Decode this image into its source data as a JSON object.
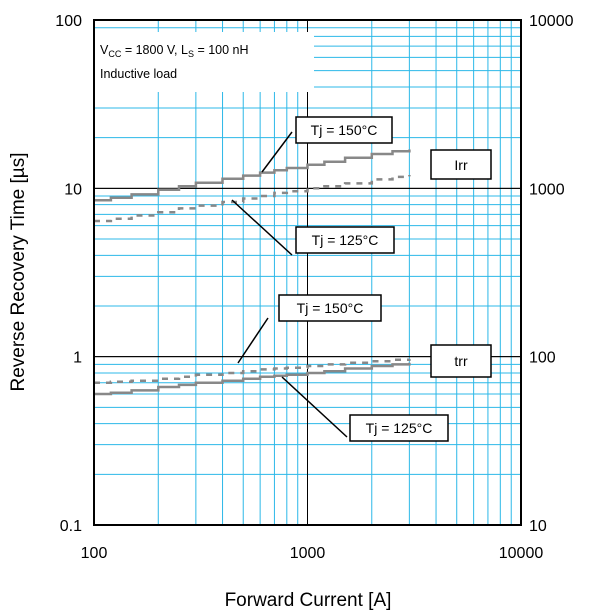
{
  "chart_data": {
    "type": "line",
    "title": "",
    "xlabel": "Forward Current [A]",
    "ylabel": "Reverse Recovery Time [µs]",
    "y2label": "",
    "xscale": "log",
    "yscale": "log",
    "xlim": [
      100,
      10000
    ],
    "ylim": [
      0.1,
      100
    ],
    "y2lim": [
      10,
      10000
    ],
    "xticks": [
      "100",
      "1000",
      "10000"
    ],
    "yticks": [
      "0.1",
      "1",
      "10",
      "100"
    ],
    "y2ticks": [
      "10",
      "100",
      "1000",
      "10000"
    ],
    "grid": true,
    "conditions": {
      "line1": {
        "vcc": "V",
        "vcc_sub": "CC",
        "vcc_val": " = 1800 V, L",
        "ls_sub": "S",
        "ls_val": " = 100 nH"
      },
      "line2": "Inductive load"
    },
    "series": [
      {
        "group": "Irr",
        "label": "Tj = 150°C",
        "style": "solid",
        "axis": "right",
        "x": [
          100,
          120,
          150,
          200,
          250,
          300,
          400,
          500,
          600,
          700,
          800,
          1000,
          1200,
          1500,
          2000,
          2500,
          3000
        ],
        "y": [
          850,
          880,
          920,
          980,
          1030,
          1080,
          1140,
          1190,
          1240,
          1280,
          1320,
          1380,
          1440,
          1520,
          1600,
          1660,
          1700
        ]
      },
      {
        "group": "Irr",
        "label": "Tj = 125°C",
        "style": "dashed",
        "axis": "right",
        "x": [
          100,
          120,
          150,
          200,
          250,
          300,
          400,
          500,
          600,
          700,
          800,
          1000,
          1200,
          1500,
          2000,
          2500,
          3000
        ],
        "y": [
          640,
          660,
          690,
          720,
          760,
          790,
          830,
          870,
          900,
          940,
          960,
          1000,
          1030,
          1070,
          1130,
          1170,
          1200
        ]
      },
      {
        "group": "trr",
        "label": "Tj = 150°C",
        "style": "dashed",
        "axis": "left",
        "x": [
          100,
          120,
          150,
          200,
          250,
          300,
          400,
          500,
          600,
          700,
          800,
          1000,
          1200,
          1500,
          2000,
          2500,
          3000
        ],
        "y": [
          0.7,
          0.71,
          0.72,
          0.74,
          0.76,
          0.78,
          0.8,
          0.82,
          0.84,
          0.85,
          0.86,
          0.88,
          0.9,
          0.92,
          0.94,
          0.96,
          0.97
        ]
      },
      {
        "group": "trr",
        "label": "Tj = 125°C",
        "style": "solid",
        "axis": "left",
        "x": [
          100,
          120,
          150,
          200,
          250,
          300,
          400,
          500,
          600,
          700,
          800,
          1000,
          1200,
          1500,
          2000,
          2500,
          3000
        ],
        "y": [
          0.6,
          0.61,
          0.63,
          0.66,
          0.68,
          0.7,
          0.72,
          0.74,
          0.76,
          0.77,
          0.78,
          0.8,
          0.82,
          0.85,
          0.88,
          0.9,
          0.92
        ]
      }
    ],
    "group_labels": [
      "Irr",
      "trr"
    ],
    "annotations": [
      "Tj = 150°C",
      "Tj = 125°C",
      "Tj = 150°C",
      "Tj = 125°C"
    ]
  }
}
